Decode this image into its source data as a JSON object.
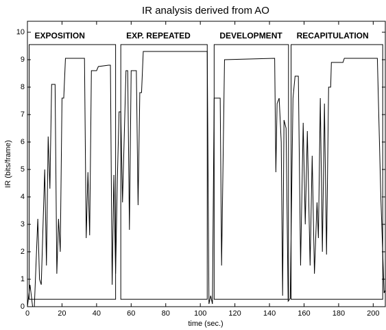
{
  "chart_data": {
    "type": "line",
    "title": "IR analysis derived from AO",
    "xlabel": "time (sec.)",
    "ylabel": "IR (bits/frame)",
    "color": "#000000",
    "xlim": [
      0,
      207
    ],
    "ylim": [
      0,
      10.4
    ],
    "xticks": [
      0,
      20,
      40,
      60,
      80,
      100,
      120,
      140,
      160,
      180,
      200
    ],
    "yticks": [
      0,
      1,
      2,
      3,
      4,
      5,
      6,
      7,
      8,
      9,
      10
    ],
    "sections": [
      {
        "label": "EXPOSITION",
        "x0": 1,
        "x1": 51,
        "y0": 0.27,
        "y1": 9.55
      },
      {
        "label": "EXP. REPEATED",
        "x0": 54,
        "x1": 104,
        "y0": 0.27,
        "y1": 9.55
      },
      {
        "label": "DEVELOPMENT",
        "x0": 108,
        "x1": 151,
        "y0": 0.27,
        "y1": 9.55
      },
      {
        "label": "RECAPITULATION",
        "x0": 152.5,
        "x1": 205.5,
        "y0": 0.27,
        "y1": 9.55
      }
    ],
    "x": [
      0,
      1.5,
      3,
      4,
      6,
      7,
      8,
      10,
      11,
      12,
      13,
      14,
      16,
      17,
      18,
      19,
      20,
      21,
      22,
      33,
      34,
      35,
      36,
      37,
      40,
      41,
      47,
      48,
      49,
      50,
      51,
      52,
      53,
      54,
      55,
      57,
      58,
      59,
      60,
      63,
      64,
      65,
      66,
      67,
      104,
      105,
      106,
      107,
      108,
      110,
      111.5,
      112.3,
      114,
      143,
      143.7,
      144.4,
      145.6,
      146.8,
      147.6,
      148.4,
      149.6,
      150.8,
      152,
      153.6,
      154.8,
      156.7,
      158,
      159.5,
      160.7,
      161.9,
      163.5,
      164.7,
      166,
      167.5,
      168.3,
      169.4,
      170.6,
      171.8,
      173,
      174.2,
      175.4,
      175.8,
      182.5,
      183.3,
      202.4,
      204.4,
      206.3,
      207
    ],
    "values": [
      0,
      0.8,
      0,
      0,
      3.2,
      1,
      0.8,
      5,
      1.5,
      6.2,
      4.3,
      8.1,
      8.1,
      1.2,
      3.2,
      2,
      7.6,
      7.6,
      9.05,
      9.05,
      2.5,
      4.9,
      2.6,
      8.6,
      8.6,
      8.75,
      8.8,
      8.8,
      0.8,
      4.8,
      1.2,
      4.6,
      7.1,
      7.1,
      3.8,
      8.6,
      8.6,
      2.8,
      8.6,
      8.6,
      3.7,
      7.8,
      7.8,
      9.3,
      9.3,
      0.1,
      0.4,
      0.1,
      7.6,
      7.6,
      7.6,
      1.5,
      9.0,
      9.05,
      4.9,
      7.4,
      7.6,
      6.0,
      0.4,
      6.8,
      6.5,
      0.2,
      0.3,
      7.6,
      8.4,
      8.4,
      1.5,
      6.7,
      3.0,
      6.4,
      1.5,
      5.5,
      1.2,
      3.8,
      2.5,
      7.6,
      2.0,
      7.4,
      1.9,
      8.0,
      8.0,
      8.9,
      8.9,
      9.05,
      9.05,
      4.0,
      0.5,
      0.6
    ]
  }
}
